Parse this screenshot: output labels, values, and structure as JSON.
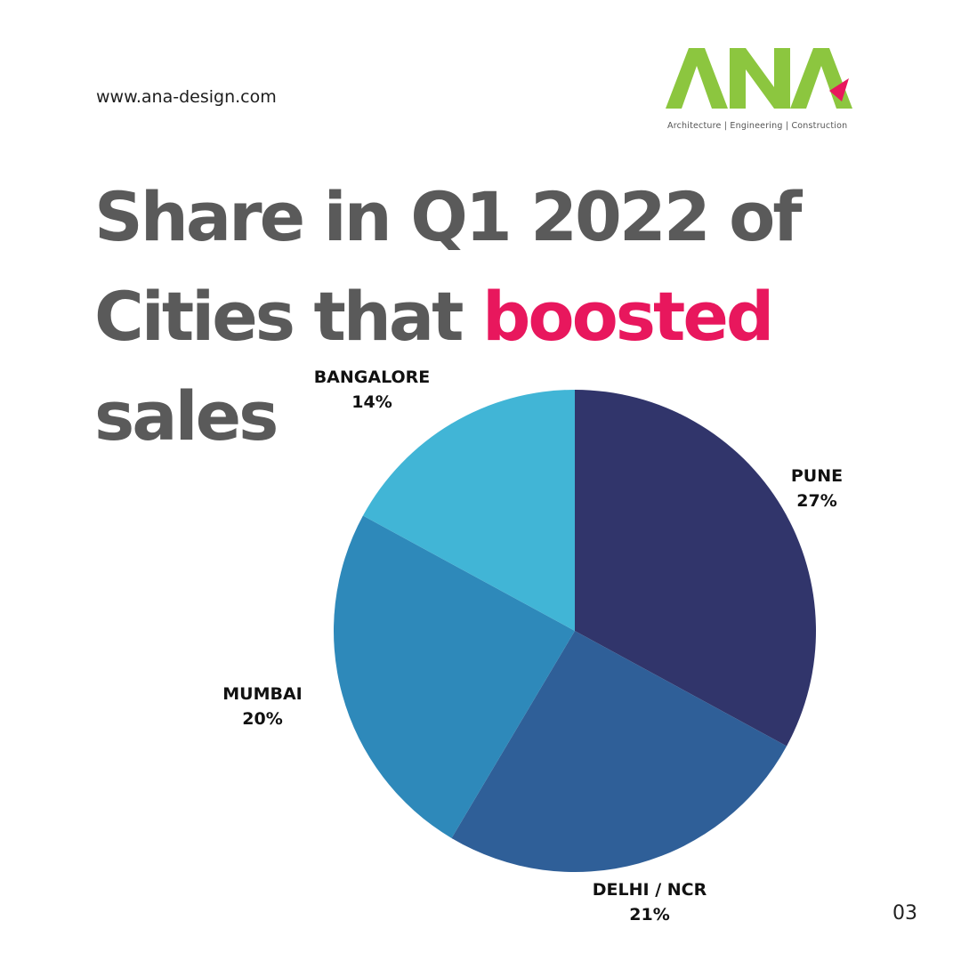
{
  "header": {
    "url": "www.ana-design.com",
    "logo": {
      "text": "ANA",
      "tagline": "Architecture  |  Engineering  |  Construction",
      "color": "#8cc63f",
      "accent_color": "#e8175d"
    }
  },
  "title": {
    "line1": "Share in Q1 2022 of",
    "line2_prefix": "Cities that ",
    "line2_accent": "boosted",
    "line3": "sales",
    "color": "#5a5a5a",
    "accent_color": "#e8175d"
  },
  "page_number": "03",
  "chart_data": {
    "type": "pie",
    "title": "Share in Q1 2022 of Cities that boosted sales",
    "categories": [
      "PUNE",
      "DELHI / NCR",
      "MUMBAI",
      "BANGALORE"
    ],
    "values": [
      27,
      21,
      20,
      14
    ],
    "labels": [
      "27%",
      "21%",
      "20%",
      "14%"
    ],
    "colors": [
      "#31356b",
      "#2f5f98",
      "#2e89ba",
      "#41b5d6"
    ],
    "start_angle": "12 o'clock, clockwise",
    "legend": "none (labels placed next to slices)"
  }
}
